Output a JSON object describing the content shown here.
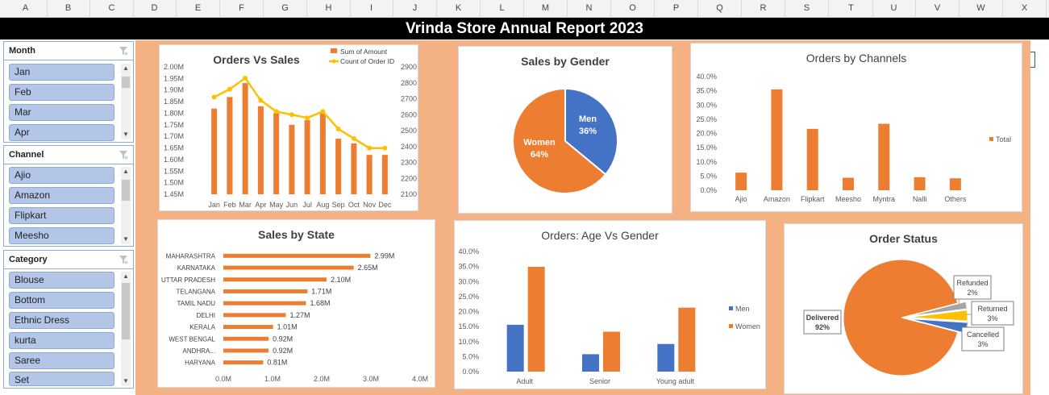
{
  "columns": [
    "A",
    "B",
    "C",
    "D",
    "E",
    "F",
    "G",
    "H",
    "I",
    "J",
    "K",
    "L",
    "M",
    "N",
    "O",
    "P",
    "Q",
    "R",
    "S",
    "T",
    "U",
    "V",
    "W",
    "X"
  ],
  "report_title": "Vrinda Store Annual Report 2023",
  "slicers": {
    "month": {
      "title": "Month",
      "items": [
        "Jan",
        "Feb",
        "Mar",
        "Apr"
      ]
    },
    "channel": {
      "title": "Channel",
      "items": [
        "Ajio",
        "Amazon",
        "Flipkart",
        "Meesho"
      ]
    },
    "category": {
      "title": "Category",
      "items": [
        "Blouse",
        "Bottom",
        "Ethnic Dress",
        "kurta",
        "Saree",
        "Set"
      ]
    }
  },
  "colors": {
    "orange": "#ed7d31",
    "blue": "#4472c4",
    "yellow": "#ffc000",
    "gray": "#a5a5a5",
    "slicer_fill": "#b4c6e7",
    "canvas": "#f4b183"
  },
  "chart_data": [
    {
      "id": "orders_vs_sales",
      "type": "bar",
      "title": "Orders Vs Sales",
      "categories": [
        "Jan",
        "Feb",
        "Mar",
        "Apr",
        "May",
        "Jun",
        "Jul",
        "Aug",
        "Sep",
        "Oct",
        "Nov",
        "Dec"
      ],
      "legend": [
        "Sum of Amount",
        "Count of Order ID"
      ],
      "series": [
        {
          "name": "Sum of Amount",
          "values": [
            1.82,
            1.87,
            1.93,
            1.83,
            1.8,
            1.75,
            1.77,
            1.8,
            1.69,
            1.67,
            1.62,
            1.62
          ]
        },
        {
          "name": "Count of Order ID",
          "values": [
            2710,
            2760,
            2830,
            2690,
            2620,
            2600,
            2580,
            2620,
            2510,
            2450,
            2390,
            2390
          ]
        }
      ],
      "y_ticks": [
        "2.00M",
        "1.95M",
        "1.90M",
        "1.85M",
        "1.80M",
        "1.75M",
        "1.70M",
        "1.65M",
        "1.60M",
        "1.55M",
        "1.50M",
        "1.45M"
      ],
      "ylim": [
        1.45,
        2.0
      ],
      "y2_ticks": [
        "2900",
        "2800",
        "2700",
        "2600",
        "2500",
        "2400",
        "2300",
        "2200",
        "2100"
      ],
      "y2lim": [
        2100,
        2900
      ]
    },
    {
      "id": "sales_by_gender",
      "type": "pie",
      "title": "Sales by Gender",
      "slices": [
        {
          "label": "Men",
          "value": 36,
          "display": "36%"
        },
        {
          "label": "Women",
          "value": 64,
          "display": "64%"
        }
      ]
    },
    {
      "id": "orders_by_channels",
      "type": "bar",
      "title": "Orders by Channels",
      "categories": [
        "Ajio",
        "Amazon",
        "Flipkart",
        "Meesho",
        "Myntra",
        "Nalli",
        "Others"
      ],
      "series": [
        {
          "name": "Total",
          "values": [
            6.2,
            35.5,
            21.6,
            4.4,
            23.4,
            4.6,
            4.2
          ]
        }
      ],
      "y_ticks": [
        "40.0%",
        "35.0%",
        "30.0%",
        "25.0%",
        "20.0%",
        "15.0%",
        "10.0%",
        "5.0%",
        "0.0%"
      ],
      "ylim": [
        0,
        40
      ]
    },
    {
      "id": "sales_by_state",
      "type": "bar",
      "title": "Sales by State",
      "categories": [
        "MAHARASHTRA",
        "KARNATAKA",
        "UTTAR PRADESH",
        "TELANGANA",
        "TAMIL NADU",
        "DELHI",
        "KERALA",
        "WEST BENGAL",
        "ANDHRA...",
        "HARYANA"
      ],
      "values": [
        2.99,
        2.65,
        2.1,
        1.71,
        1.68,
        1.27,
        1.01,
        0.92,
        0.92,
        0.81
      ],
      "value_labels": [
        "2.99M",
        "2.65M",
        "2.10M",
        "1.71M",
        "1.68M",
        "1.27M",
        "1.01M",
        "0.92M",
        "0.92M",
        "0.81M"
      ],
      "x_ticks": [
        "0.0M",
        "1.0M",
        "2.0M",
        "3.0M",
        "4.0M"
      ],
      "xlim": [
        0,
        4
      ]
    },
    {
      "id": "orders_age_vs_gender",
      "type": "bar",
      "title": "Orders: Age Vs Gender",
      "categories": [
        "Adult",
        "Senior",
        "Young adult"
      ],
      "series": [
        {
          "name": "Men",
          "values": [
            15.6,
            5.8,
            9.2
          ]
        },
        {
          "name": "Women",
          "values": [
            34.9,
            13.3,
            21.3
          ]
        }
      ],
      "y_ticks": [
        "40.0%",
        "35.0%",
        "30.0%",
        "25.0%",
        "20.0%",
        "15.0%",
        "10.0%",
        "5.0%",
        "0.0%"
      ],
      "ylim": [
        0,
        40
      ]
    },
    {
      "id": "order_status",
      "type": "pie",
      "title": "Order Status",
      "slices": [
        {
          "label": "Delivered",
          "value": 92,
          "display": "92%"
        },
        {
          "label": "Refunded",
          "value": 2,
          "display": "2%"
        },
        {
          "label": "Returned",
          "value": 3,
          "display": "3%"
        },
        {
          "label": "Cancelled",
          "value": 3,
          "display": "3%"
        }
      ]
    }
  ]
}
